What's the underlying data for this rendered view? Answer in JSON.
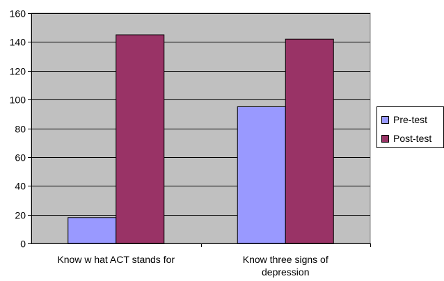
{
  "chart_data": {
    "type": "bar",
    "categories": [
      "Know  w hat ACT stands for",
      "Know  three signs of depression"
    ],
    "category_lines": [
      [
        "Know  w hat ACT stands for"
      ],
      [
        "Know  three signs of",
        "depression"
      ]
    ],
    "series": [
      {
        "name": "Pre-test",
        "values": [
          18,
          95
        ],
        "color": "#9999ff"
      },
      {
        "name": "Post-test",
        "values": [
          145,
          142
        ],
        "color": "#993366"
      }
    ],
    "ylim": [
      0,
      160
    ],
    "yticks": [
      "0",
      "20",
      "40",
      "60",
      "80",
      "100",
      "120",
      "140",
      "160"
    ],
    "grid": true,
    "plot_background": "#c0c0c0",
    "legend_position": "right"
  }
}
